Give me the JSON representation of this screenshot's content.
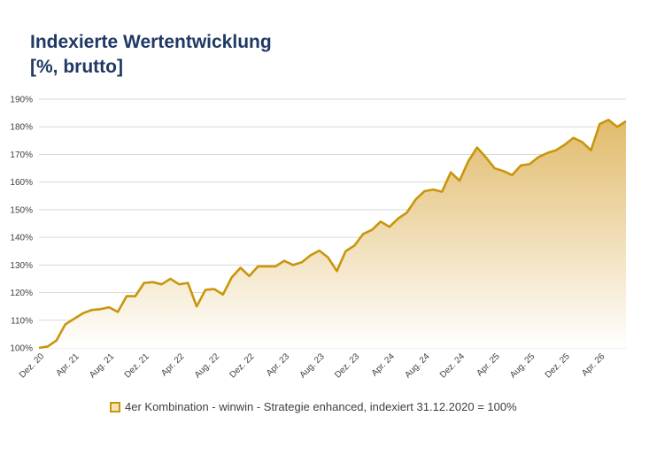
{
  "title_line1": "Indexierte Wertentwicklung",
  "title_line2": "[%, brutto]",
  "colors": {
    "line": "#c8960c",
    "fill_top": "#e2bc6b",
    "grid": "#d9d9d9",
    "title": "#1f3864"
  },
  "chart_data": {
    "type": "area",
    "title": "Indexierte Wertentwicklung [%, brutto]",
    "ylim": [
      100,
      190
    ],
    "y_ticks": [
      "100%",
      "110%",
      "120%",
      "130%",
      "140%",
      "150%",
      "160%",
      "170%",
      "180%",
      "190%"
    ],
    "x_ticks": [
      "Dez. 20",
      "Apr. 21",
      "Aug. 21",
      "Dez. 21",
      "Apr. 22",
      "Aug. 22",
      "Dez. 22",
      "Apr. 23",
      "Aug. 23",
      "Dez. 23",
      "Apr. 24",
      "Aug. 24",
      "Dez. 24",
      "Apr. 25",
      "Aug. 25",
      "Dez. 25",
      "Apr. 26"
    ],
    "grid": true,
    "legend_position": "bottom",
    "series": [
      {
        "name": "4er Kombination - winwin - Strategie enhanced, indexiert 31.12.2020 = 100%",
        "x_start": "Dez. 20",
        "x_step": "1 Monat",
        "values": [
          100.0,
          100.5,
          102.7,
          108.5,
          110.5,
          112.5,
          113.7,
          114.0,
          114.7,
          113.0,
          118.7,
          118.7,
          123.5,
          123.8,
          123.0,
          125.0,
          123.0,
          123.5,
          115.0,
          121.0,
          121.3,
          119.3,
          125.5,
          129.0,
          126.0,
          129.5,
          129.5,
          129.5,
          131.5,
          130.0,
          131.0,
          133.5,
          135.2,
          132.7,
          127.8,
          135.0,
          137.0,
          141.2,
          142.7,
          145.7,
          143.8,
          146.8,
          149.0,
          153.7,
          156.7,
          157.3,
          156.5,
          163.5,
          160.5,
          167.5,
          172.5,
          169.0,
          165.0,
          164.0,
          162.5,
          166.0,
          166.5,
          169.0,
          170.5,
          171.5,
          173.5,
          176.0,
          174.5,
          171.5,
          181.0,
          182.5,
          180.0,
          182.0
        ]
      }
    ]
  }
}
